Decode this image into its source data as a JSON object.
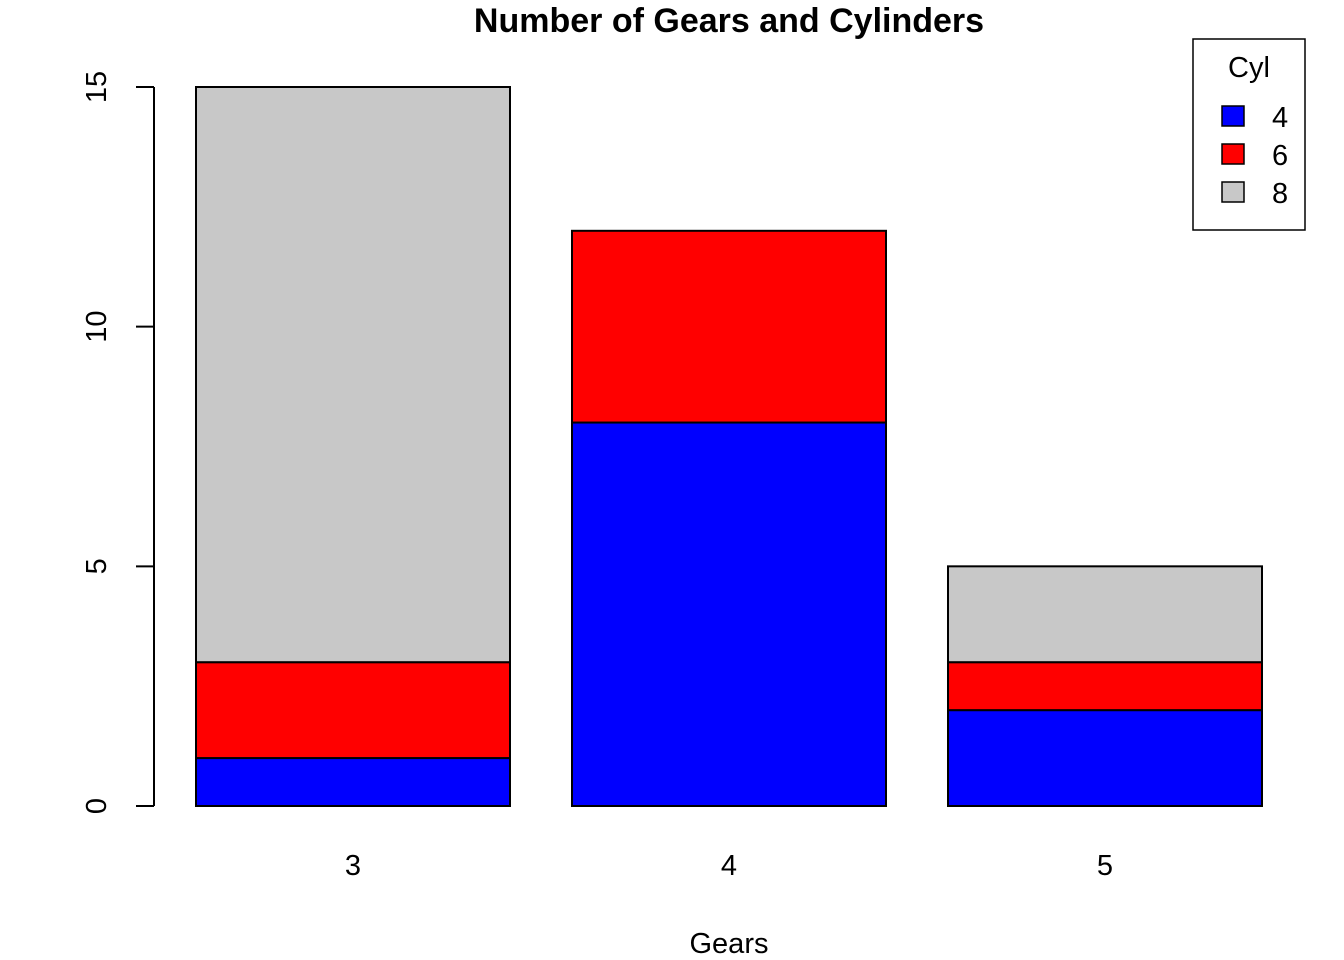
{
  "chart_data": {
    "type": "bar",
    "stacked": true,
    "title": "Number of Gears and Cylinders",
    "xlabel": "Gears",
    "ylabel": "",
    "categories": [
      "3",
      "4",
      "5"
    ],
    "series": [
      {
        "name": "4",
        "values": [
          1,
          8,
          2
        ],
        "color": "#0000ff"
      },
      {
        "name": "6",
        "values": [
          2,
          4,
          1
        ],
        "color": "#ff0000"
      },
      {
        "name": "8",
        "values": [
          12,
          0,
          2
        ],
        "color": "#c8c8c8"
      }
    ],
    "ylim": [
      0,
      15
    ],
    "yticks": [
      0,
      5,
      10,
      15
    ],
    "grid": false,
    "legend": {
      "title": "Cyl",
      "placement": "top-right"
    }
  }
}
